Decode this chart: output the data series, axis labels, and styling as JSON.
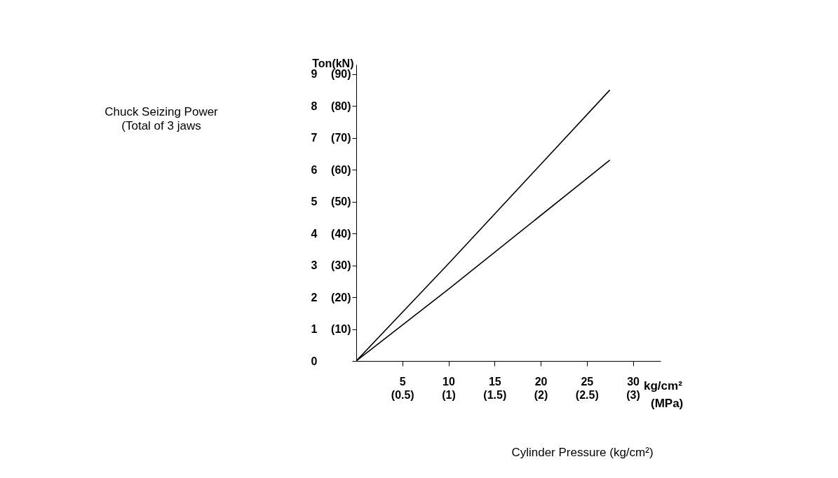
{
  "chart_data": {
    "type": "line",
    "ylabel": "Ton",
    "y2label": "(kN)",
    "xlabel": "Cylinder Pressure (kg/cm²)",
    "annotations": [
      "Chuck Seizing Power\n(Total of 3 jaws",
      "kg/cm²",
      "(MPa)"
    ],
    "series": [
      {
        "color": "#000000",
        "x": [
          0,
          10,
          27.5
        ],
        "values": [
          0,
          3.05,
          8.5
        ]
      },
      {
        "color": "#000000",
        "x": [
          0,
          10,
          27.5
        ],
        "values": [
          0,
          2.25,
          6.3
        ]
      }
    ],
    "xlim": [
      0,
      33
    ],
    "xticks": [
      5,
      10,
      15,
      20,
      25,
      30
    ],
    "x2lim": [
      0,
      3.3
    ],
    "x2ticks": [
      {
        "value": 0.5,
        "label": "(0.5)"
      },
      {
        "value": 1,
        "label": "(1)"
      },
      {
        "value": 1.5,
        "label": "(1.5)"
      },
      {
        "value": 2,
        "label": "(2)"
      },
      {
        "value": 2.5,
        "label": "(2.5)"
      },
      {
        "value": 3,
        "label": "(3)"
      }
    ],
    "ylim": [
      0,
      9.3
    ],
    "yticks": [
      0,
      1,
      2,
      3,
      4,
      5,
      6,
      7,
      8,
      9
    ],
    "y2lim": [
      0,
      93
    ],
    "y2ticks": [
      {
        "value": 10,
        "label": "(10)"
      },
      {
        "value": 20,
        "label": "(20)"
      },
      {
        "value": 30,
        "label": "(30)"
      },
      {
        "value": 40,
        "label": "(40)"
      },
      {
        "value": 50,
        "label": "(50)"
      },
      {
        "value": 60,
        "label": "(60)"
      },
      {
        "value": 70,
        "label": "(70)"
      },
      {
        "value": 80,
        "label": "(80)"
      },
      {
        "value": 90,
        "label": "(90)"
      }
    ],
    "grid": false,
    "legend": false,
    "marker": "none",
    "line_style": "solid"
  }
}
